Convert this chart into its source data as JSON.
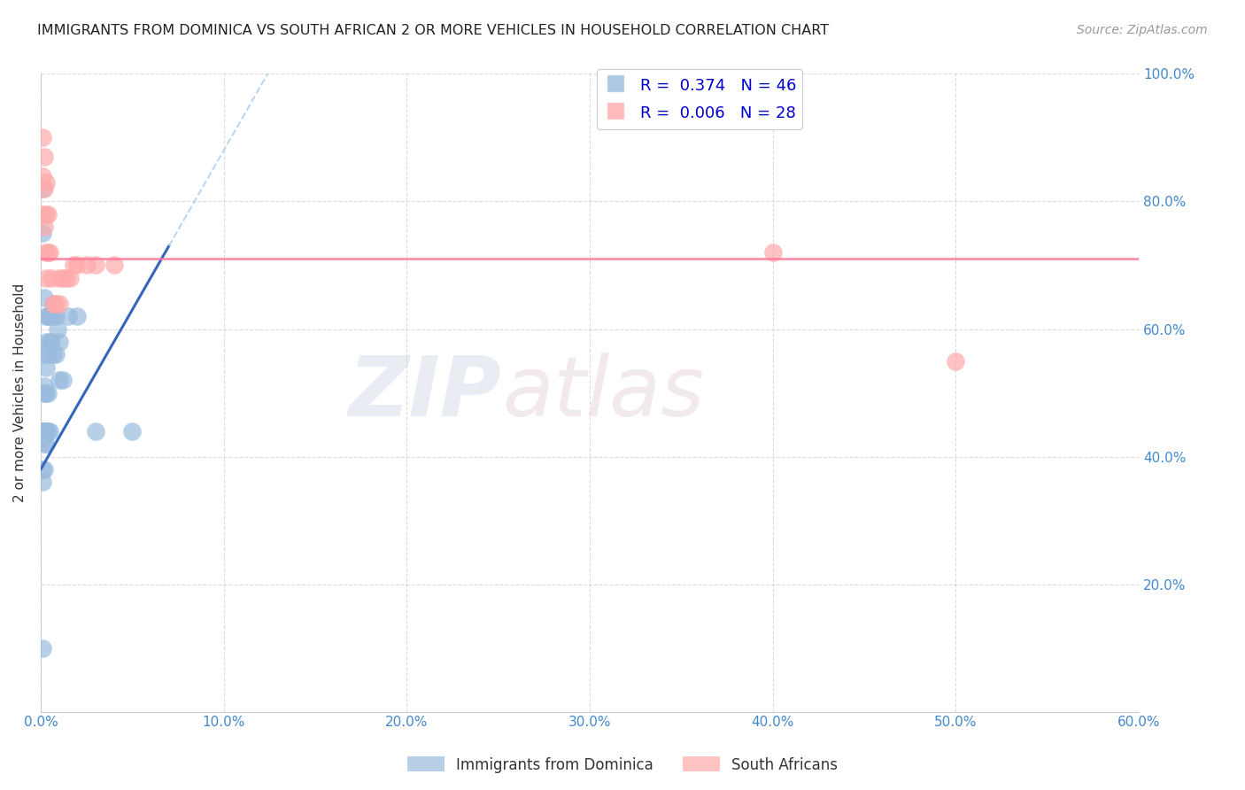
{
  "title": "IMMIGRANTS FROM DOMINICA VS SOUTH AFRICAN 2 OR MORE VEHICLES IN HOUSEHOLD CORRELATION CHART",
  "source": "Source: ZipAtlas.com",
  "ylabel": "2 or more Vehicles in Household",
  "xlim": [
    0.0,
    0.6
  ],
  "ylim": [
    0.0,
    1.0
  ],
  "xticks": [
    0.0,
    0.1,
    0.2,
    0.3,
    0.4,
    0.5,
    0.6
  ],
  "yticks": [
    0.0,
    0.2,
    0.4,
    0.6,
    0.8,
    1.0
  ],
  "xtick_labels": [
    "0.0%",
    "10.0%",
    "20.0%",
    "30.0%",
    "40.0%",
    "50.0%",
    "60.0%"
  ],
  "ytick_labels_right": [
    "",
    "20.0%",
    "40.0%",
    "60.0%",
    "80.0%",
    "100.0%"
  ],
  "blue_R": 0.374,
  "blue_N": 46,
  "pink_R": 0.006,
  "pink_N": 28,
  "blue_scatter_color": "#99BBDD",
  "pink_scatter_color": "#FFAAAA",
  "blue_line_color": "#3366BB",
  "pink_line_color": "#FF7799",
  "blue_x": [
    0.001,
    0.001,
    0.001,
    0.001,
    0.001,
    0.001,
    0.002,
    0.002,
    0.002,
    0.002,
    0.003,
    0.003,
    0.003,
    0.003,
    0.003,
    0.004,
    0.004,
    0.004,
    0.005,
    0.005,
    0.005,
    0.006,
    0.006,
    0.007,
    0.007,
    0.008,
    0.008,
    0.009,
    0.01,
    0.01,
    0.012,
    0.015,
    0.02,
    0.03,
    0.05,
    0.001,
    0.002,
    0.003,
    0.001,
    0.001,
    0.002,
    0.003,
    0.004,
    0.001,
    0.001,
    0.002
  ],
  "blue_y": [
    0.44,
    0.44,
    0.44,
    0.44,
    0.44,
    0.43,
    0.44,
    0.5,
    0.51,
    0.44,
    0.56,
    0.58,
    0.62,
    0.54,
    0.44,
    0.62,
    0.56,
    0.5,
    0.62,
    0.58,
    0.44,
    0.62,
    0.58,
    0.64,
    0.56,
    0.56,
    0.62,
    0.6,
    0.58,
    0.52,
    0.52,
    0.62,
    0.62,
    0.44,
    0.44,
    0.75,
    0.42,
    0.42,
    0.38,
    0.36,
    0.38,
    0.5,
    0.44,
    0.1,
    0.82,
    0.65
  ],
  "pink_x": [
    0.001,
    0.001,
    0.001,
    0.002,
    0.002,
    0.002,
    0.003,
    0.003,
    0.003,
    0.004,
    0.004,
    0.005,
    0.006,
    0.007,
    0.008,
    0.01,
    0.01,
    0.012,
    0.014,
    0.016,
    0.018,
    0.02,
    0.025,
    0.03,
    0.04,
    0.4,
    0.5,
    0.003
  ],
  "pink_y": [
    0.9,
    0.84,
    0.78,
    0.87,
    0.82,
    0.76,
    0.83,
    0.78,
    0.72,
    0.78,
    0.72,
    0.72,
    0.68,
    0.64,
    0.64,
    0.68,
    0.64,
    0.68,
    0.68,
    0.68,
    0.7,
    0.7,
    0.7,
    0.7,
    0.7,
    0.72,
    0.55,
    0.68
  ],
  "background_color": "#FFFFFF",
  "grid_color": "#CCCCCC"
}
